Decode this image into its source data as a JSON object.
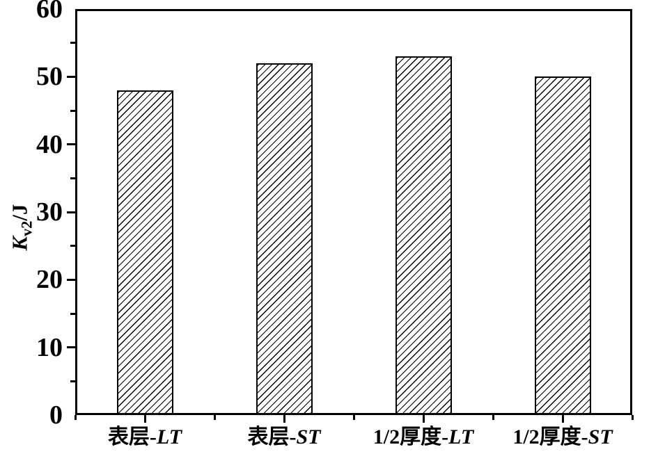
{
  "figure": {
    "background": "#ffffff",
    "line_color": "#000000",
    "bar_fill": "#ffffff"
  },
  "chart_data": {
    "type": "bar",
    "title": "",
    "xlabel": "",
    "ylabel": "Kv2/J",
    "ylabel_parts": {
      "symbol": "K",
      "subscript": "v2",
      "unit": "/J"
    },
    "ylim": [
      0,
      60
    ],
    "y_major_step": 10,
    "y_minor_step": 5,
    "y_tick_labels": [
      "0",
      "10",
      "20",
      "30",
      "40",
      "50",
      "60"
    ],
    "categories": [
      {
        "prefix": "表层-",
        "italic": "LT",
        "full": "表层-LT"
      },
      {
        "prefix": "表层-",
        "italic": "ST",
        "full": "表层-ST"
      },
      {
        "prefix": "1/2厚度-",
        "italic": "LT",
        "full": "1/2厚度-LT"
      },
      {
        "prefix": "1/2厚度-",
        "italic": "ST",
        "full": "1/2厚度-ST"
      }
    ],
    "values": [
      48,
      52,
      53,
      50
    ],
    "bar_style": {
      "fill": "diagonal-hatch",
      "hatch_direction": "/",
      "hatch_color": "#000000",
      "edge_color": "#000000"
    },
    "grid": false,
    "legend": false
  }
}
